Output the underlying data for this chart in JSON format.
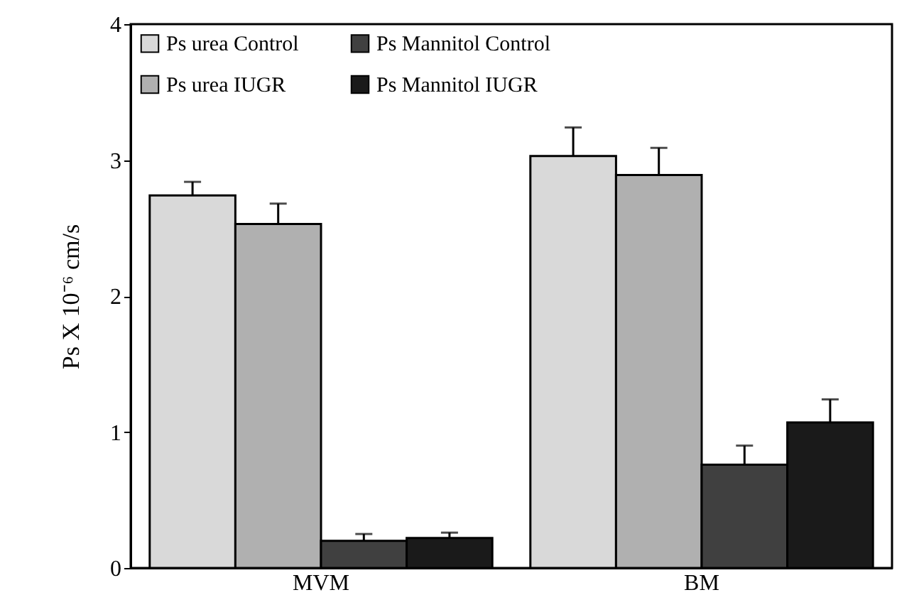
{
  "chart_data": {
    "type": "bar",
    "ylabel": "Ps X 10⁻⁶ cm/s",
    "categories": [
      "MVM",
      "BM"
    ],
    "series": [
      {
        "name": "Ps urea  Control",
        "color": "#d9d9d9",
        "values": [
          2.74,
          3.03
        ],
        "errors": [
          [
            2.74,
            2.84
          ],
          [
            3.03,
            3.24
          ]
        ]
      },
      {
        "name": "Ps urea  IUGR",
        "color": "#b0b0b0",
        "values": [
          2.53,
          2.89
        ],
        "errors": [
          [
            2.53,
            2.68
          ],
          [
            2.89,
            3.09
          ]
        ]
      },
      {
        "name": "Ps Mannitol   Control",
        "color": "#404040",
        "values": [
          0.2,
          0.76
        ],
        "errors": [
          [
            0.2,
            0.25
          ],
          [
            0.76,
            0.9
          ]
        ]
      },
      {
        "name": "Ps Mannitol   IUGR",
        "color": "#1a1a1a",
        "values": [
          0.22,
          1.07
        ],
        "errors": [
          [
            0.22,
            0.26
          ],
          [
            1.07,
            1.24
          ]
        ]
      }
    ],
    "ylim": [
      0,
      4
    ],
    "yticks": [
      0,
      1,
      2,
      3,
      4
    ],
    "grid": false,
    "legend": "top left"
  }
}
